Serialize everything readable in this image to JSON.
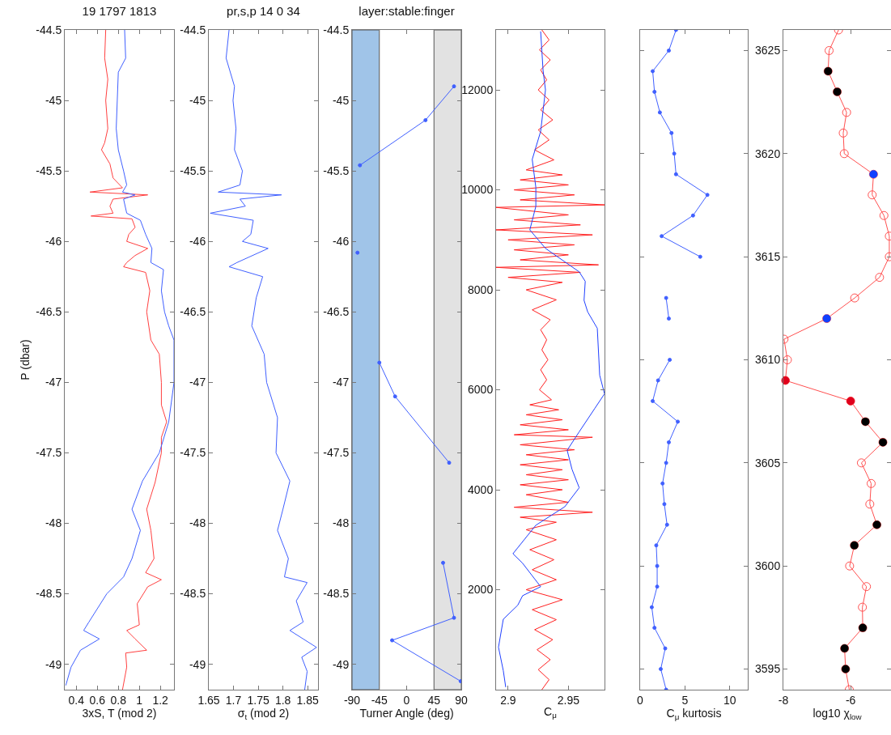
{
  "chart_data": [
    {
      "type": "line",
      "title": "19 1797 1813",
      "xlabel": "3xS, T (mod 2)",
      "ylabel": "P (dbar)",
      "xlim": [
        0.29,
        1.33
      ],
      "xticks": [
        0.4,
        0.6,
        0.8,
        1,
        1.2
      ],
      "ylim": [
        -49.18,
        -44.5
      ],
      "yticks": [
        -49,
        -48.5,
        -48,
        -47.5,
        -47,
        -46.5,
        -46,
        -45.5,
        -45,
        -44.5
      ],
      "grid": false,
      "series": [
        {
          "color": "#ff4040",
          "x": [
            0.68,
            0.67,
            0.7,
            0.68,
            0.7,
            0.67,
            0.64,
            0.72,
            0.75,
            0.84,
            0.53,
            1.08,
            0.75,
            0.72,
            0.75,
            0.54,
            0.93,
            0.96,
            0.9,
            0.88,
            1.08,
            0.96,
            0.88,
            0.85,
            1.06,
            1.1,
            1.07,
            1.11,
            1.19,
            1.21,
            1.21,
            1.26,
            1.21,
            1.21,
            1.15,
            1.07,
            1.11,
            1.14,
            1.06,
            1.21,
            1.08,
            0.98,
            1.0,
            0.88,
            0.96,
            1.07,
            0.87,
            0.88,
            0.84
          ],
          "values": [
            -44.5,
            -44.7,
            -44.85,
            -45,
            -45.2,
            -45.3,
            -45.35,
            -45.45,
            -45.55,
            -45.62,
            -45.65,
            -45.67,
            -45.7,
            -45.75,
            -45.8,
            -45.82,
            -45.84,
            -45.9,
            -45.95,
            -46,
            -46.05,
            -46.1,
            -46.15,
            -46.18,
            -46.22,
            -46.35,
            -46.5,
            -46.7,
            -46.8,
            -47,
            -47.16,
            -47.28,
            -47.39,
            -47.5,
            -47.71,
            -47.9,
            -48.05,
            -48.25,
            -48.35,
            -48.4,
            -48.45,
            -48.57,
            -48.72,
            -48.76,
            -48.82,
            -48.9,
            -48.92,
            -49.02,
            -49.18
          ]
        },
        {
          "color": "#4060ff",
          "x": [
            0.86,
            0.87,
            0.8,
            0.79,
            0.78,
            0.8,
            0.85,
            0.88,
            0.84,
            0.96,
            0.85,
            0.88,
            1.01,
            1.06,
            1.12,
            1.11,
            1.23,
            1.21,
            1.24,
            1.28,
            1.33,
            1.33,
            1.28,
            1.19,
            1.03,
            0.93,
            1.01,
            0.93,
            0.85,
            0.69,
            0.52,
            0.47,
            0.62,
            0.44,
            0.35,
            0.3
          ],
          "values": [
            -44.5,
            -44.7,
            -44.8,
            -45,
            -45.2,
            -45.35,
            -45.5,
            -45.6,
            -45.65,
            -45.67,
            -45.7,
            -45.8,
            -45.85,
            -45.95,
            -46.05,
            -46.15,
            -46.2,
            -46.35,
            -46.5,
            -46.6,
            -46.7,
            -47,
            -47.28,
            -47.5,
            -47.7,
            -47.9,
            -48.05,
            -48.25,
            -48.38,
            -48.5,
            -48.7,
            -48.76,
            -48.82,
            -48.9,
            -49.02,
            -49.15
          ]
        }
      ]
    },
    {
      "type": "line",
      "title": "pr,s,p 14 0 34",
      "xlabel": "σ$_{t}$ (mod 2)",
      "xlim": [
        1.65,
        1.871
      ],
      "xticks": [
        1.65,
        1.7,
        1.75,
        1.8,
        1.85
      ],
      "ylim": [
        -49.18,
        -44.5
      ],
      "yticks": [
        -49,
        -48.5,
        -48,
        -47.5,
        -47,
        -46.5,
        -46,
        -45.5,
        -45,
        -44.5
      ],
      "grid": false,
      "series": [
        {
          "color": "#4060ff",
          "x": [
            1.691,
            1.685,
            1.702,
            1.699,
            1.705,
            1.702,
            1.718,
            1.713,
            1.669,
            1.797,
            1.713,
            1.724,
            1.653,
            1.74,
            1.735,
            1.718,
            1.77,
            1.707,
            1.691,
            1.759,
            1.746,
            1.737,
            1.762,
            1.767,
            1.789,
            1.786,
            1.814,
            1.8,
            1.789,
            1.811,
            1.803,
            1.849,
            1.827,
            1.841,
            1.814,
            1.868,
            1.838,
            1.849,
            1.844
          ],
          "values": [
            -44.5,
            -44.7,
            -44.9,
            -45,
            -45.2,
            -45.35,
            -45.5,
            -45.6,
            -45.65,
            -45.67,
            -45.7,
            -45.75,
            -45.8,
            -45.85,
            -45.95,
            -46,
            -46.05,
            -46.15,
            -46.18,
            -46.25,
            -46.4,
            -46.6,
            -46.8,
            -47,
            -47.25,
            -47.5,
            -47.7,
            -47.9,
            -48.05,
            -48.25,
            -48.38,
            -48.42,
            -48.55,
            -48.7,
            -48.76,
            -48.88,
            -48.95,
            -49.05,
            -49.18
          ]
        }
      ]
    },
    {
      "type": "line",
      "title": "layer:stable:finger",
      "xlabel": "Turner Angle (deg)",
      "xlim": [
        -90,
        90
      ],
      "xticks": [
        -90,
        -45,
        0,
        45,
        90
      ],
      "ylim": [
        -49.18,
        -44.5
      ],
      "yticks": [
        -49,
        -48.5,
        -48,
        -47.5,
        -47,
        -46.5,
        -46,
        -45.5,
        -45,
        -44.5
      ],
      "grid": false,
      "marker": "circle",
      "bands": [
        {
          "axis": "x",
          "from": -90,
          "to": -45,
          "color": "#a0c4e8"
        },
        {
          "axis": "x",
          "from": 45,
          "to": 90,
          "color": "#e2e2e2"
        }
      ],
      "series": [
        {
          "color": "#4060ff",
          "x": [
            78,
            31,
            -77,
            null,
            -81,
            null,
            -45,
            -19,
            70,
            null,
            60,
            78,
            -24,
            89
          ],
          "values": [
            -44.9,
            -45.14,
            -45.46,
            null,
            -46.08,
            null,
            -46.86,
            -47.1,
            -47.57,
            null,
            -48.28,
            -48.67,
            -48.83,
            -49.12
          ]
        }
      ]
    },
    {
      "type": "line",
      "xlabel": "C$_{μ}$",
      "xlim": [
        2.89,
        2.98
      ],
      "xticks": [
        2.9,
        2.95
      ],
      "ylim": [
        0,
        13200
      ],
      "yticks": [
        2000,
        4000,
        6000,
        8000,
        10000,
        12000
      ],
      "grid": false,
      "series": [
        {
          "color": "#ff2020",
          "x": [
            2.928,
            2.934,
            2.926,
            2.935,
            2.927,
            2.932,
            2.925,
            2.934,
            2.927,
            2.937,
            2.925,
            2.934,
            2.922,
            2.938,
            2.915,
            2.945,
            2.91,
            2.95,
            2.905,
            2.955,
            2.91,
            2.98,
            2.89,
            2.95,
            2.905,
            2.96,
            2.89,
            2.97,
            2.9,
            2.955,
            2.905,
            2.95,
            2.91,
            2.975,
            2.89,
            2.96,
            2.9,
            2.945,
            2.915,
            2.94,
            2.92,
            2.935,
            2.927,
            2.932,
            2.928,
            2.933,
            2.927,
            2.932,
            2.926,
            2.936,
            2.918,
            2.942,
            2.915,
            2.945,
            2.91,
            2.95,
            2.905,
            2.97,
            2.91,
            2.955,
            2.915,
            2.95,
            2.91,
            2.945,
            2.915,
            2.95,
            2.91,
            2.945,
            2.915,
            2.95,
            2.905,
            2.97,
            2.91,
            2.94,
            2.915,
            2.94,
            2.918,
            2.938,
            2.92,
            2.94,
            2.915,
            2.945,
            2.92,
            2.94,
            2.922,
            2.937,
            2.924,
            2.935,
            2.925,
            2.934,
            2.928
          ],
          "values": [
            13200,
            13000,
            12800,
            12600,
            12400,
            12200,
            12000,
            11800,
            11600,
            11400,
            11200,
            11000,
            10800,
            10600,
            10400,
            10300,
            10200,
            10100,
            10000,
            9900,
            9800,
            9700,
            9650,
            9500,
            9400,
            9300,
            9200,
            9100,
            9000,
            8900,
            8800,
            8700,
            8600,
            8500,
            8450,
            8350,
            8250,
            8150,
            8000,
            7800,
            7600,
            7400,
            7200,
            7000,
            6800,
            6600,
            6400,
            6200,
            6000,
            5800,
            5700,
            5600,
            5500,
            5400,
            5300,
            5200,
            5100,
            5050,
            4900,
            4800,
            4700,
            4600,
            4500,
            4400,
            4300,
            4200,
            4100,
            4000,
            3900,
            3750,
            3650,
            3550,
            3450,
            3350,
            3200,
            3000,
            2800,
            2600,
            2400,
            2200,
            2000,
            1800,
            1600,
            1400,
            1200,
            1000,
            800,
            600,
            400,
            200,
            0
          ]
        },
        {
          "color": "#2040ff",
          "x": [
            2.927,
            2.929,
            2.931,
            2.927,
            2.92,
            2.923,
            2.923,
            2.918,
            2.931,
            2.959,
            2.964,
            2.963,
            2.966,
            2.974,
            2.976,
            2.98,
            2.972,
            2.959,
            2.949,
            2.953,
            2.959,
            2.947,
            2.923,
            2.904,
            2.912,
            2.927,
            2.912,
            2.908,
            2.896,
            2.892,
            2.896,
            2.898
          ],
          "values": [
            13170,
            12390,
            12000,
            11170,
            10610,
            10050,
            9670,
            9200,
            8830,
            8360,
            8170,
            7790,
            7560,
            7230,
            6290,
            5920,
            5630,
            5160,
            4790,
            4410,
            4040,
            3660,
            3290,
            2720,
            2530,
            2060,
            1880,
            1690,
            1410,
            850,
            380,
            50
          ]
        }
      ]
    },
    {
      "type": "line",
      "xlabel": "C$_{μ}$ kurtosis",
      "xlim": [
        0,
        12
      ],
      "xticks": [
        0,
        5,
        10
      ],
      "ylim": [
        3594,
        3626
      ],
      "yticks": [
        3595,
        3600,
        3605,
        3610,
        3615,
        3620,
        3625
      ],
      "tick_labels": "x",
      "grid": false,
      "marker": "circle",
      "series": [
        {
          "color": "#4060ff",
          "x": [
            4.0,
            3.2,
            1.4,
            1.6,
            2.2,
            3.5,
            3.8,
            4.0,
            7.5,
            5.9,
            2.4,
            6.7,
            null,
            2.9,
            3.2,
            null,
            3.3,
            2.0,
            1.4,
            4.2,
            3.2,
            2.9,
            2.5,
            2.7,
            3.0,
            1.8,
            1.9,
            1.9,
            1.3,
            1.6,
            2.8,
            2.3,
            2.9
          ],
          "values": [
            3626,
            3625,
            3624,
            3623,
            3622,
            3621,
            3620,
            3619,
            3618,
            3617,
            3616,
            3615,
            null,
            3613,
            3612,
            null,
            3610,
            3609,
            3608,
            3607,
            3606,
            3605,
            3604,
            3603,
            3602,
            3601,
            3600,
            3599,
            3598,
            3597,
            3596,
            3595,
            3594
          ]
        }
      ]
    },
    {
      "type": "line",
      "xlabel": "log10 χ$_{low}$",
      "xlim": [
        -8,
        -4.8
      ],
      "xticks": [
        -8,
        -6
      ],
      "ylim": [
        3594,
        3626
      ],
      "yticks": [
        3595,
        3600,
        3605,
        3610,
        3615,
        3620,
        3625
      ],
      "grid": false,
      "marker": "circle",
      "series": [
        {
          "color": "#ff5050",
          "x": [
            -6.36,
            -6.64,
            -6.67,
            -6.4,
            -6.12,
            -6.22,
            -6.19,
            -5.32,
            -5.36,
            -5.01,
            -4.85,
            -4.85,
            -5.14,
            -5.88,
            -6.71,
            -7.98,
            -7.88,
            -7.94,
            -6.0,
            -5.56,
            -5.04,
            -5.68,
            -5.39,
            -5.43,
            -5.22,
            -5.89,
            -6.03,
            -5.53,
            -5.65,
            -5.64,
            -6.18,
            -6.15,
            -6.04
          ],
          "values": [
            3626,
            3625,
            3624,
            3623,
            3622,
            3621,
            3620,
            3619,
            3618,
            3617,
            3616,
            3615,
            3614,
            3613,
            3612,
            3611,
            3610,
            3609,
            3608,
            3607,
            3606,
            3605,
            3604,
            3603,
            3602,
            3601,
            3600,
            3599,
            3598,
            3597,
            3596,
            3595,
            3594
          ]
        },
        {
          "type": "scatter",
          "color": "#000000",
          "x": [
            -6.67,
            -6.4,
            -5.56,
            -5.04,
            -5.22,
            -5.89,
            -5.64,
            -6.18,
            -6.15
          ],
          "values": [
            3624,
            3623,
            3607,
            3606,
            3602,
            3601,
            3597,
            3596,
            3595
          ]
        },
        {
          "type": "scatter",
          "color": "#1040ff",
          "x": [
            -5.32,
            -6.71
          ],
          "values": [
            3619,
            3612
          ]
        },
        {
          "type": "scatter",
          "color": "#e0001c",
          "x": [
            -7.94,
            -6.0
          ],
          "values": [
            3609,
            3608
          ]
        }
      ]
    }
  ]
}
